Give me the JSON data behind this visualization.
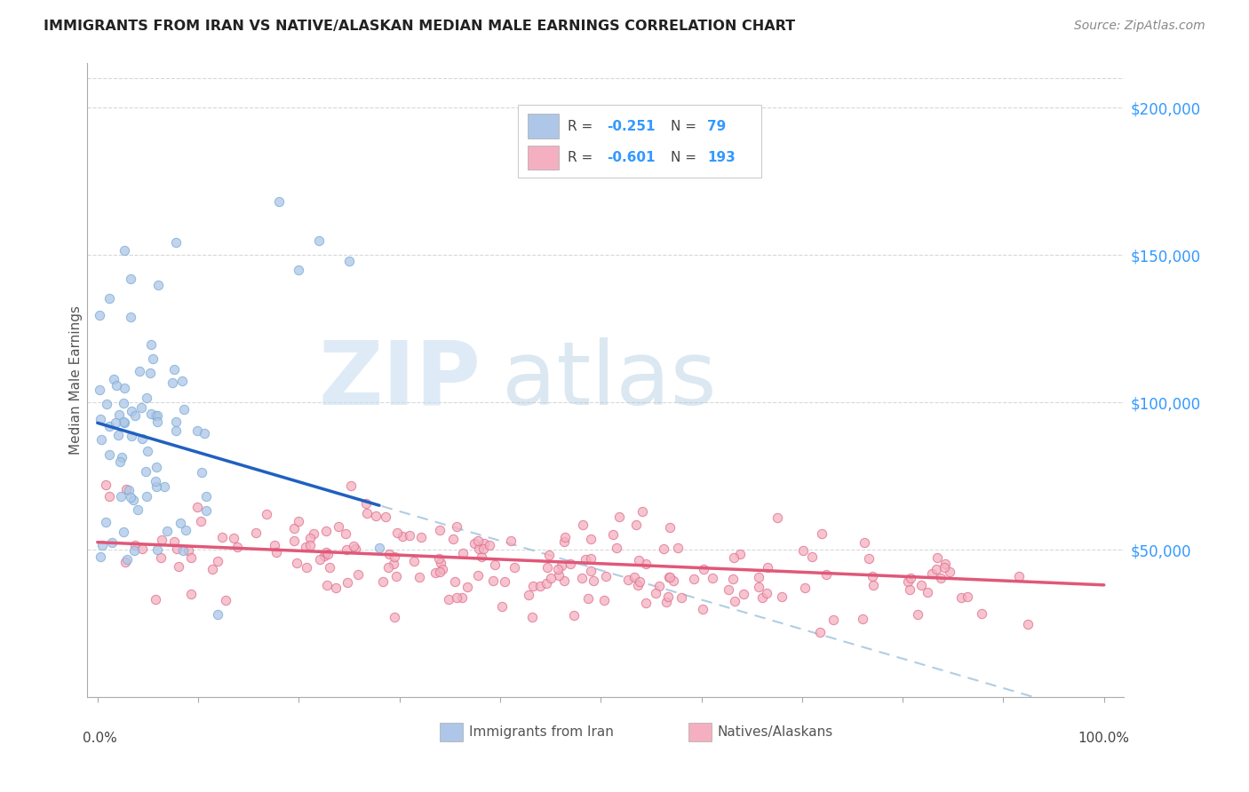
{
  "title": "IMMIGRANTS FROM IRAN VS NATIVE/ALASKAN MEDIAN MALE EARNINGS CORRELATION CHART",
  "source": "Source: ZipAtlas.com",
  "ylabel": "Median Male Earnings",
  "color_iran": "#aec6e8",
  "color_iran_edge": "#7aaed4",
  "color_native": "#f4b0c0",
  "color_native_edge": "#e07090",
  "color_iran_line": "#2060c0",
  "color_native_line": "#e05878",
  "color_dashed": "#90b8d8",
  "background_color": "#ffffff",
  "ylim_min": 0,
  "ylim_max": 215000,
  "xlim_min": -0.01,
  "xlim_max": 1.02,
  "yticks": [
    50000,
    100000,
    150000,
    200000
  ],
  "ytick_labels": [
    "$50,000",
    "$100,000",
    "$150,000",
    "$200,000"
  ],
  "grid_color": "#d8d8d8",
  "legend_r1_val": "-0.251",
  "legend_n1_val": "79",
  "legend_r2_val": "-0.601",
  "legend_n2_val": "193",
  "iran_line_x0": 0.0,
  "iran_line_y0": 93000,
  "iran_line_x1": 0.28,
  "iran_line_y1": 65000,
  "native_line_x0": 0.0,
  "native_line_y0": 52500,
  "native_line_x1": 1.0,
  "native_line_y1": 38000
}
